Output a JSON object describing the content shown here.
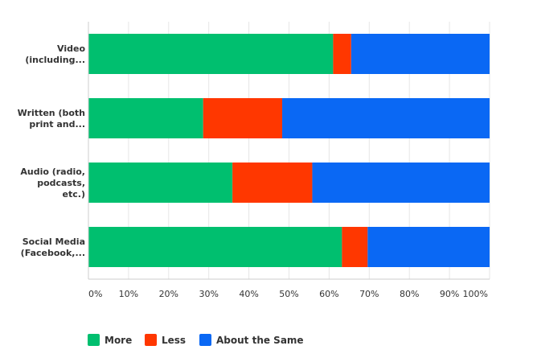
{
  "chart_data": {
    "type": "bar",
    "orientation": "horizontal",
    "stacked": true,
    "categories": [
      [
        "Video",
        "(including..."
      ],
      [
        "Written (both",
        "print and..."
      ],
      [
        "Audio (radio,",
        "podcasts,",
        "etc.)"
      ],
      [
        "Social Media",
        "(Facebook,..."
      ]
    ],
    "series": [
      {
        "name": "More",
        "color": "#00bf6f",
        "values": [
          61.0,
          28.6,
          35.9,
          63.2
        ]
      },
      {
        "name": "Less",
        "color": "#ff3700",
        "values": [
          4.5,
          19.7,
          19.9,
          6.4
        ]
      },
      {
        "name": "About the Same",
        "color": "#0a68f4",
        "values": [
          34.5,
          51.7,
          44.2,
          30.4
        ]
      }
    ],
    "xlim": [
      0,
      100
    ],
    "xticks": [
      "0%",
      "10%",
      "20%",
      "30%",
      "40%",
      "50%",
      "60%",
      "70%",
      "80%",
      "90%",
      "100%"
    ],
    "grid": true,
    "legend_position": "bottom-left",
    "title": "",
    "xlabel": "",
    "ylabel": ""
  }
}
